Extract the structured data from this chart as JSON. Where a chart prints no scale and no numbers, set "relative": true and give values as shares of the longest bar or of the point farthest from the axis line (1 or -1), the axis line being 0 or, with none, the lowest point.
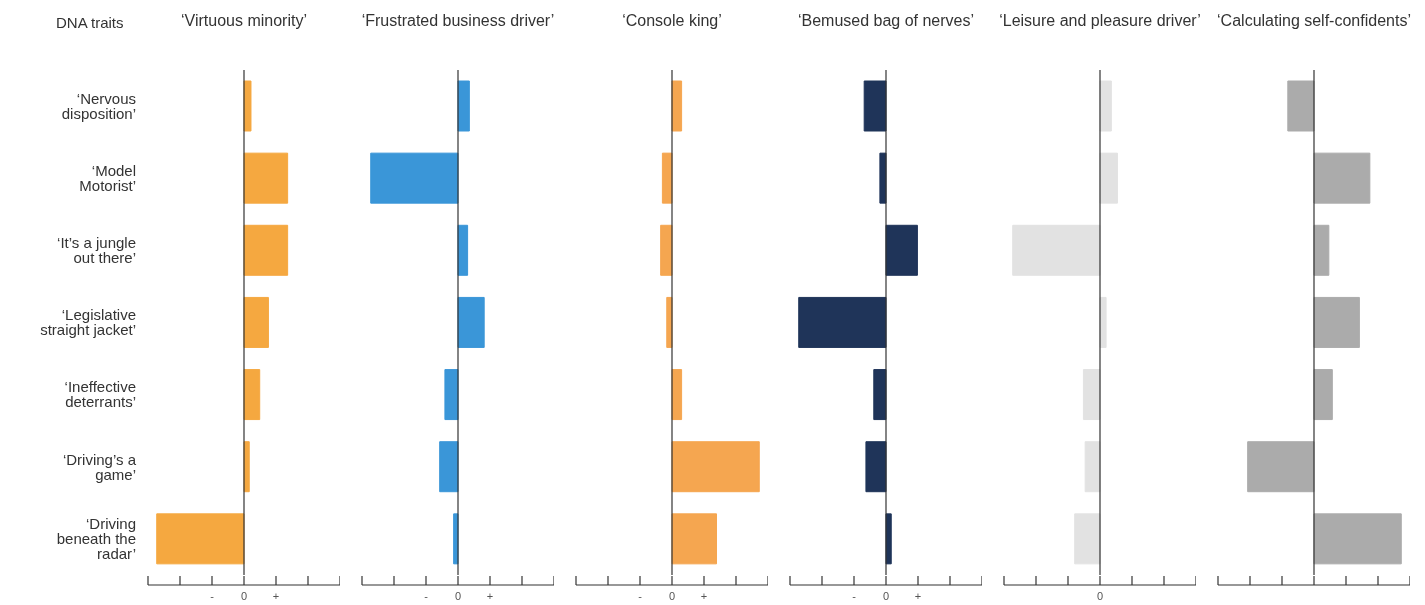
{
  "chart_data": [
    {
      "type": "bar",
      "orientation": "horizontal",
      "relative": true,
      "title": "‘Virtuous minority’",
      "ylabel": "DNA traits",
      "categories": [
        "‘Nervous disposition’",
        "‘Model Motorist’",
        "‘It’s a jungle out there’",
        "‘Legislative straight jacket’",
        "‘Ineffective deterrants’",
        "‘Driving’s a game’",
        "‘Driving beneath the radar’"
      ],
      "values": [
        0.08,
        0.5,
        0.5,
        0.28,
        0.18,
        0.06,
        -1
      ],
      "color": "#f5a840",
      "annotations": [
        "-",
        "0",
        "+"
      ]
    },
    {
      "type": "bar",
      "orientation": "horizontal",
      "relative": true,
      "title": "‘Frustrated business driver’",
      "categories": [
        null,
        null,
        null,
        null,
        null,
        null,
        null
      ],
      "values": [
        0.13,
        -1,
        0.11,
        0.3,
        -0.15,
        -0.21,
        -0.05
      ],
      "color": "#3a96d8",
      "annotations": [
        "-",
        "0",
        "+"
      ]
    },
    {
      "type": "bar",
      "orientation": "horizontal",
      "relative": true,
      "title": "‘Console king’",
      "categories": [
        null,
        null,
        null,
        null,
        null,
        null,
        null
      ],
      "values": [
        0.11,
        -0.11,
        -0.13,
        -0.06,
        0.11,
        1,
        0.51
      ],
      "color": "#f5a650",
      "annotations": [
        "-",
        "0",
        "+"
      ]
    },
    {
      "type": "bar",
      "orientation": "horizontal",
      "relative": true,
      "title": "‘Bemused bag of nerves’",
      "categories": [
        null,
        null,
        null,
        null,
        null,
        null,
        null
      ],
      "values": [
        -0.25,
        -0.07,
        0.36,
        -1,
        -0.14,
        -0.23,
        0.06
      ],
      "color": "#1f3459",
      "annotations": [
        "-",
        "0",
        "+"
      ]
    },
    {
      "type": "bar",
      "orientation": "horizontal",
      "relative": true,
      "title": "‘Leisure and pleasure driver’",
      "categories": [
        null,
        null,
        null,
        null,
        null,
        null,
        null
      ],
      "values": [
        0.13,
        0.2,
        -1,
        0.07,
        -0.19,
        -0.17,
        -0.29
      ],
      "color": "#e2e2e2",
      "annotations": [
        "0"
      ]
    },
    {
      "type": "bar",
      "orientation": "horizontal",
      "relative": true,
      "title": "‘Calculating self-confidents’",
      "categories": [
        null,
        null,
        null,
        null,
        null,
        null,
        null
      ],
      "values": [
        -0.3,
        0.64,
        0.17,
        0.52,
        0.21,
        -0.76,
        1
      ],
      "color": "#ababab"
    }
  ]
}
